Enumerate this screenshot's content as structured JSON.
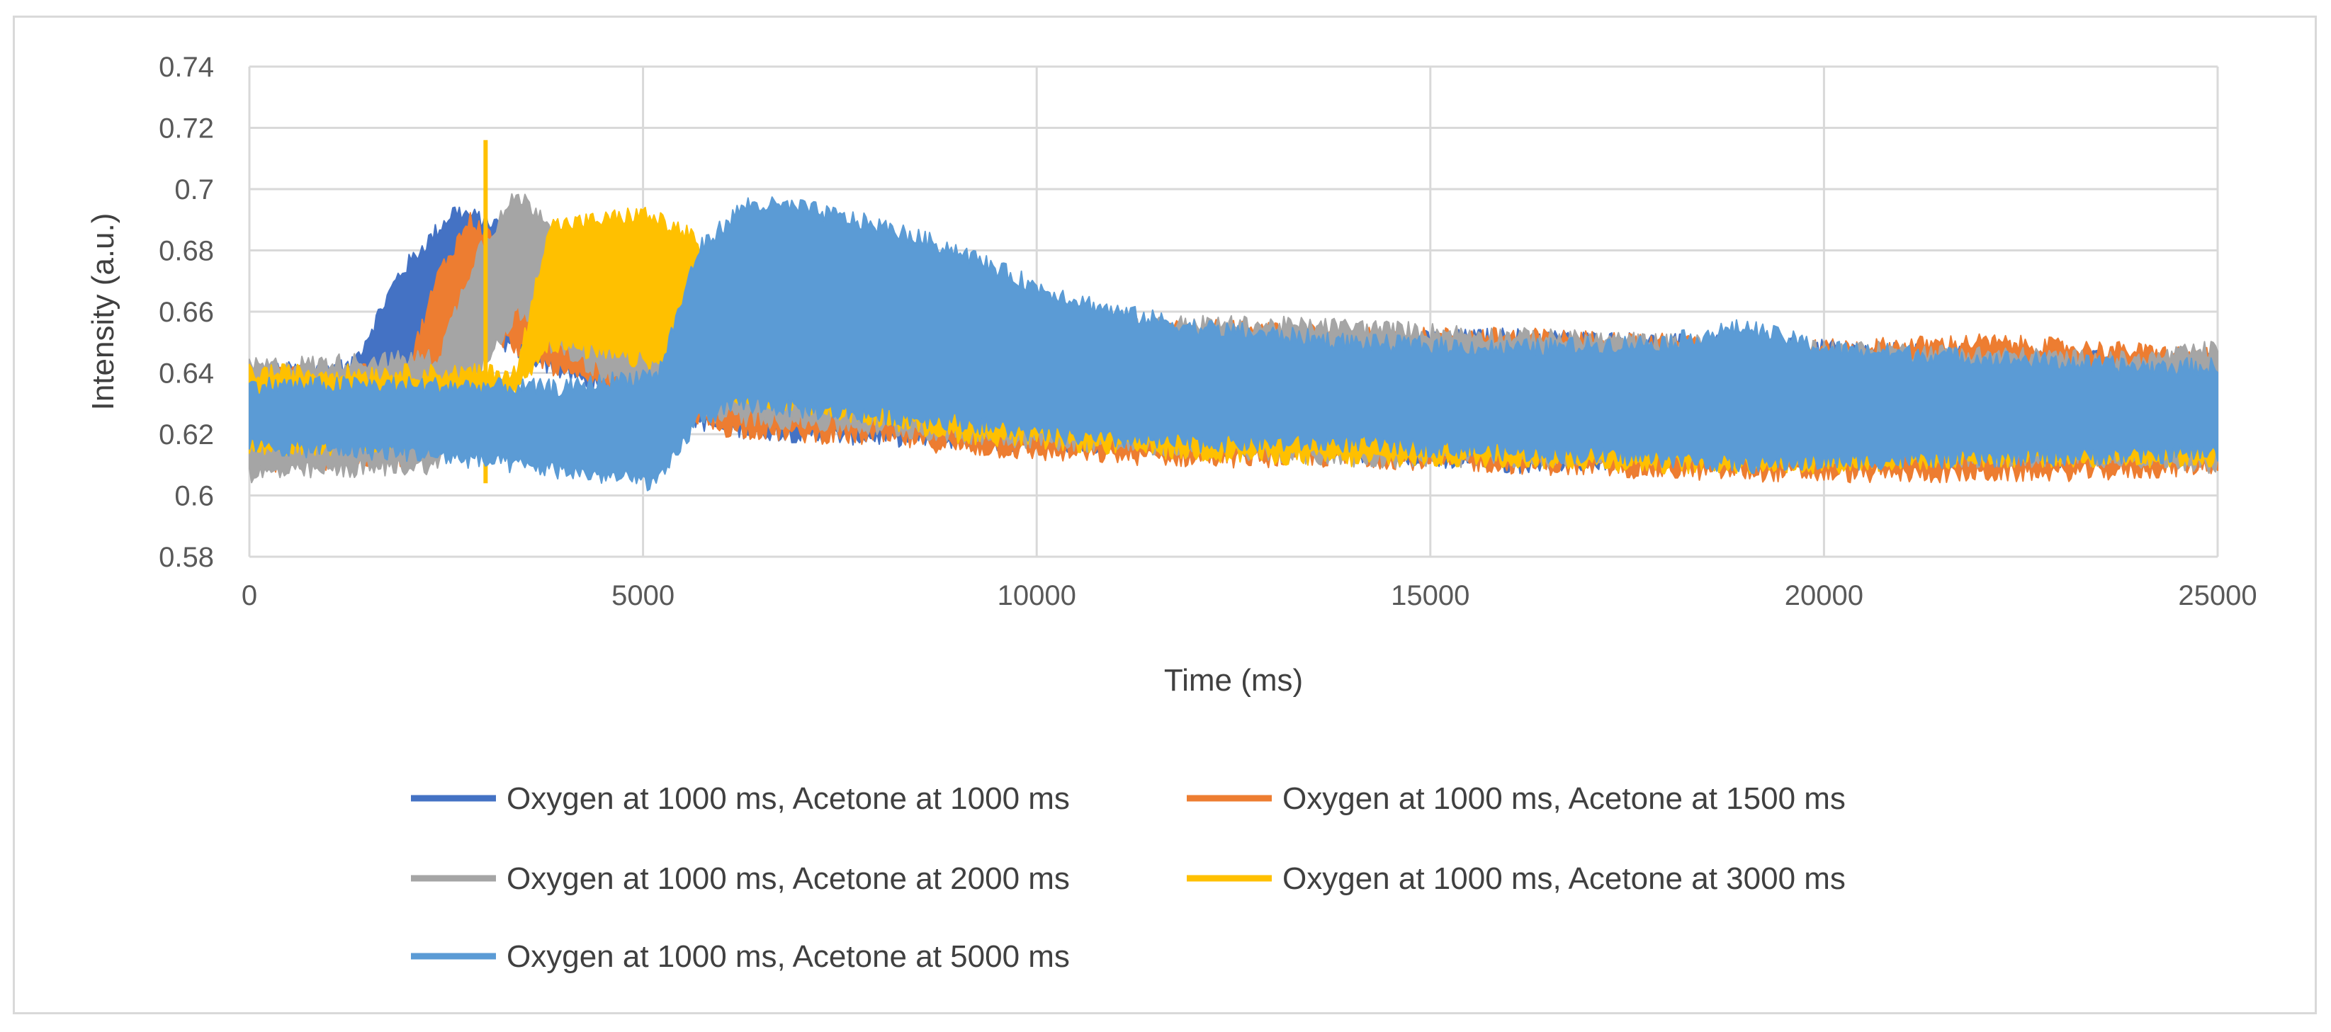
{
  "chart_data": {
    "type": "line",
    "title": "",
    "xlabel": "Time (ms)",
    "ylabel": "Intensity (a.u.)",
    "xlim": [
      0,
      25000
    ],
    "ylim": [
      0.58,
      0.74
    ],
    "x_ticks": [
      "0",
      "5000",
      "10000",
      "15000",
      "20000",
      "25000"
    ],
    "y_ticks": [
      "0.58",
      "0.6",
      "0.62",
      "0.64",
      "0.66",
      "0.68",
      "0.7",
      "0.72",
      "0.74"
    ],
    "grid": true,
    "legend_position": "bottom",
    "series": [
      {
        "name": "Oxygen at 1000 ms, Acetone at 1000 ms",
        "color": "#4472C4",
        "rise_start": 1300,
        "rise_end": 2600,
        "peak": 0.694,
        "x": [
          0,
          1300,
          1900,
          2600,
          3200,
          4000,
          5000,
          6000,
          7000,
          8000,
          9000,
          10000,
          12000,
          14000,
          16000,
          18000,
          20000,
          22000,
          24000,
          25000
        ],
        "upper": [
          0.64,
          0.642,
          0.672,
          0.693,
          0.688,
          0.65,
          0.646,
          0.64,
          0.637,
          0.636,
          0.64,
          0.645,
          0.65,
          0.65,
          0.652,
          0.65,
          0.648,
          0.646,
          0.644,
          0.645
        ],
        "lower": [
          0.612,
          0.614,
          0.64,
          0.66,
          0.65,
          0.64,
          0.63,
          0.622,
          0.62,
          0.619,
          0.618,
          0.617,
          0.616,
          0.614,
          0.61,
          0.612,
          0.612,
          0.612,
          0.612,
          0.612
        ]
      },
      {
        "name": "Oxygen at 1000 ms, Acetone at 1500 ms",
        "color": "#ED7D31",
        "rise_start": 2000,
        "rise_end": 2700,
        "peak": 0.69,
        "x": [
          0,
          2000,
          2400,
          2800,
          3300,
          4000,
          5000,
          6000,
          7000,
          8000,
          9000,
          10000,
          12000,
          14000,
          16000,
          18000,
          20000,
          22000,
          24000,
          25000
        ],
        "upper": [
          0.64,
          0.64,
          0.672,
          0.69,
          0.68,
          0.66,
          0.65,
          0.648,
          0.645,
          0.645,
          0.648,
          0.65,
          0.655,
          0.652,
          0.652,
          0.65,
          0.648,
          0.65,
          0.647,
          0.645
        ],
        "lower": [
          0.61,
          0.612,
          0.64,
          0.655,
          0.65,
          0.64,
          0.63,
          0.622,
          0.62,
          0.619,
          0.616,
          0.614,
          0.612,
          0.612,
          0.61,
          0.608,
          0.607,
          0.607,
          0.608,
          0.61
        ]
      },
      {
        "name": "Oxygen at 1000 ms, Acetone at 2000 ms",
        "color": "#A5A5A5",
        "rise_start": 2400,
        "rise_end": 3400,
        "peak": 0.699,
        "x": [
          0,
          2400,
          2900,
          3400,
          3800,
          4500,
          5000,
          6000,
          7000,
          8000,
          9000,
          10000,
          12000,
          14000,
          16000,
          18000,
          20000,
          22000,
          24000,
          25000
        ],
        "upper": [
          0.642,
          0.645,
          0.68,
          0.698,
          0.69,
          0.66,
          0.655,
          0.65,
          0.648,
          0.65,
          0.652,
          0.655,
          0.656,
          0.655,
          0.652,
          0.65,
          0.648,
          0.646,
          0.644,
          0.648
        ],
        "lower": [
          0.607,
          0.61,
          0.64,
          0.66,
          0.65,
          0.64,
          0.632,
          0.626,
          0.624,
          0.622,
          0.62,
          0.618,
          0.615,
          0.612,
          0.612,
          0.613,
          0.613,
          0.612,
          0.612,
          0.61
        ]
      },
      {
        "name": "Oxygen at 1000 ms, Acetone at 3000 ms",
        "color": "#FFC000",
        "rise_start": 3400,
        "rise_end": 5600,
        "peak": 0.693,
        "spike_x": 3000,
        "spike_y": [
          0.604,
          0.716
        ],
        "x": [
          0,
          2900,
          3400,
          3800,
          4500,
          5000,
          5600,
          6200,
          7000,
          8000,
          9000,
          10000,
          12000,
          14000,
          16000,
          18000,
          20000,
          22000,
          24000,
          25000
        ],
        "upper": [
          0.64,
          0.64,
          0.64,
          0.688,
          0.69,
          0.692,
          0.685,
          0.658,
          0.65,
          0.64,
          0.632,
          0.63,
          0.628,
          0.625,
          0.622,
          0.62,
          0.62,
          0.62,
          0.62,
          0.62
        ],
        "lower": [
          0.615,
          0.618,
          0.635,
          0.65,
          0.646,
          0.644,
          0.64,
          0.632,
          0.63,
          0.625,
          0.62,
          0.618,
          0.614,
          0.612,
          0.612,
          0.61,
          0.61,
          0.612,
          0.612,
          0.612
        ]
      },
      {
        "name": "Oxygen at 1000 ms, Acetone at 5000 ms",
        "color": "#5B9BD5",
        "rise_start": 5200,
        "rise_end": 6300,
        "peak": 0.696,
        "x": [
          0,
          2000,
          4000,
          5200,
          5700,
          6300,
          7000,
          8000,
          9000,
          10000,
          11000,
          12000,
          14000,
          16000,
          18000,
          19000,
          20000,
          22000,
          24000,
          25000
        ],
        "upper": [
          0.636,
          0.636,
          0.635,
          0.64,
          0.68,
          0.695,
          0.694,
          0.688,
          0.68,
          0.668,
          0.66,
          0.655,
          0.65,
          0.648,
          0.65,
          0.655,
          0.648,
          0.645,
          0.642,
          0.642
        ],
        "lower": [
          0.616,
          0.614,
          0.608,
          0.604,
          0.625,
          0.63,
          0.628,
          0.626,
          0.624,
          0.62,
          0.618,
          0.617,
          0.617,
          0.614,
          0.612,
          0.61,
          0.611,
          0.612,
          0.613,
          0.614
        ]
      }
    ]
  }
}
